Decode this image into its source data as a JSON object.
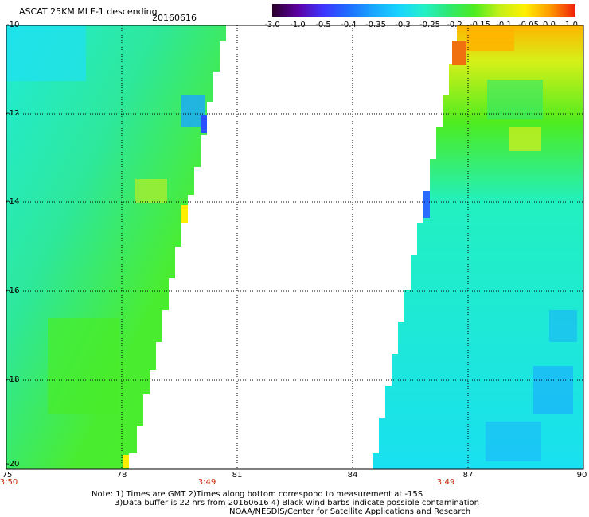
{
  "header": {
    "title": "ASCAT 25KM MLE-1 descending",
    "date": "20160616"
  },
  "colorbar": {
    "labels": [
      "-3.0",
      "-1.0",
      "-0.5",
      "-0.4",
      "-0.35",
      "-0.3",
      "-0.25",
      "-0.2",
      "-0.15",
      "-0.1",
      "-0.05",
      "0.0",
      "1.0"
    ],
    "colors": [
      "#2a0028",
      "#5a00a0",
      "#3f34ff",
      "#1e6cff",
      "#19a6ff",
      "#17d4ff",
      "#23f0c8",
      "#2fe870",
      "#4cec20",
      "#c4f018",
      "#fff000",
      "#ff9a00",
      "#f01e0a"
    ]
  },
  "map": {
    "y_ticks": [
      "-10",
      "-12",
      "-14",
      "-16",
      "-18",
      "-20"
    ],
    "x_ticks": [
      "75",
      "78",
      "81",
      "84",
      "87",
      "90"
    ],
    "times": [
      "3:50",
      "3:49",
      "3:49"
    ]
  },
  "footer": {
    "note_line1": "Note: 1) Times are GMT 2)Times along bottom correspond to measurement at -15S",
    "note_line2": "3)Data buffer is 22 hrs from 20160616 4) Black wind barbs indicate possible contamination",
    "credit": "NOAA/NESDIS/Center for Satellite Applications and Research"
  }
}
